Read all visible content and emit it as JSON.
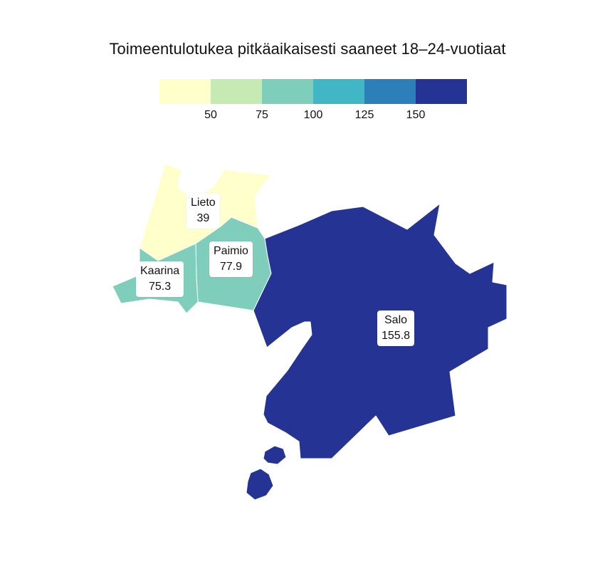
{
  "title": "Toimeentulotukea pitkäaikaisesti saaneet 18–24-vuotiaat",
  "legend": {
    "colors": [
      "#ffffcc",
      "#c7e9b4",
      "#7fcdbb",
      "#41b6c4",
      "#2c7fb8",
      "#253494"
    ],
    "ticks": [
      "50",
      "75",
      "100",
      "125",
      "150"
    ]
  },
  "chart_data": {
    "type": "choropleth",
    "title": "Toimeentulotukea pitkäaikaisesti saaneet 18–24-vuotiaat",
    "bins": [
      50,
      75,
      100,
      125,
      150
    ],
    "regions": [
      {
        "name": "Lieto",
        "value": 39,
        "value_label": "39",
        "color": "#ffffcc"
      },
      {
        "name": "Paimio",
        "value": 77.9,
        "value_label": "77.9",
        "color": "#7fcdbb"
      },
      {
        "name": "Kaarina",
        "value": 75.3,
        "value_label": "75.3",
        "color": "#7fcdbb"
      },
      {
        "name": "Salo",
        "value": 155.8,
        "value_label": "155.8",
        "color": "#253494"
      }
    ]
  }
}
